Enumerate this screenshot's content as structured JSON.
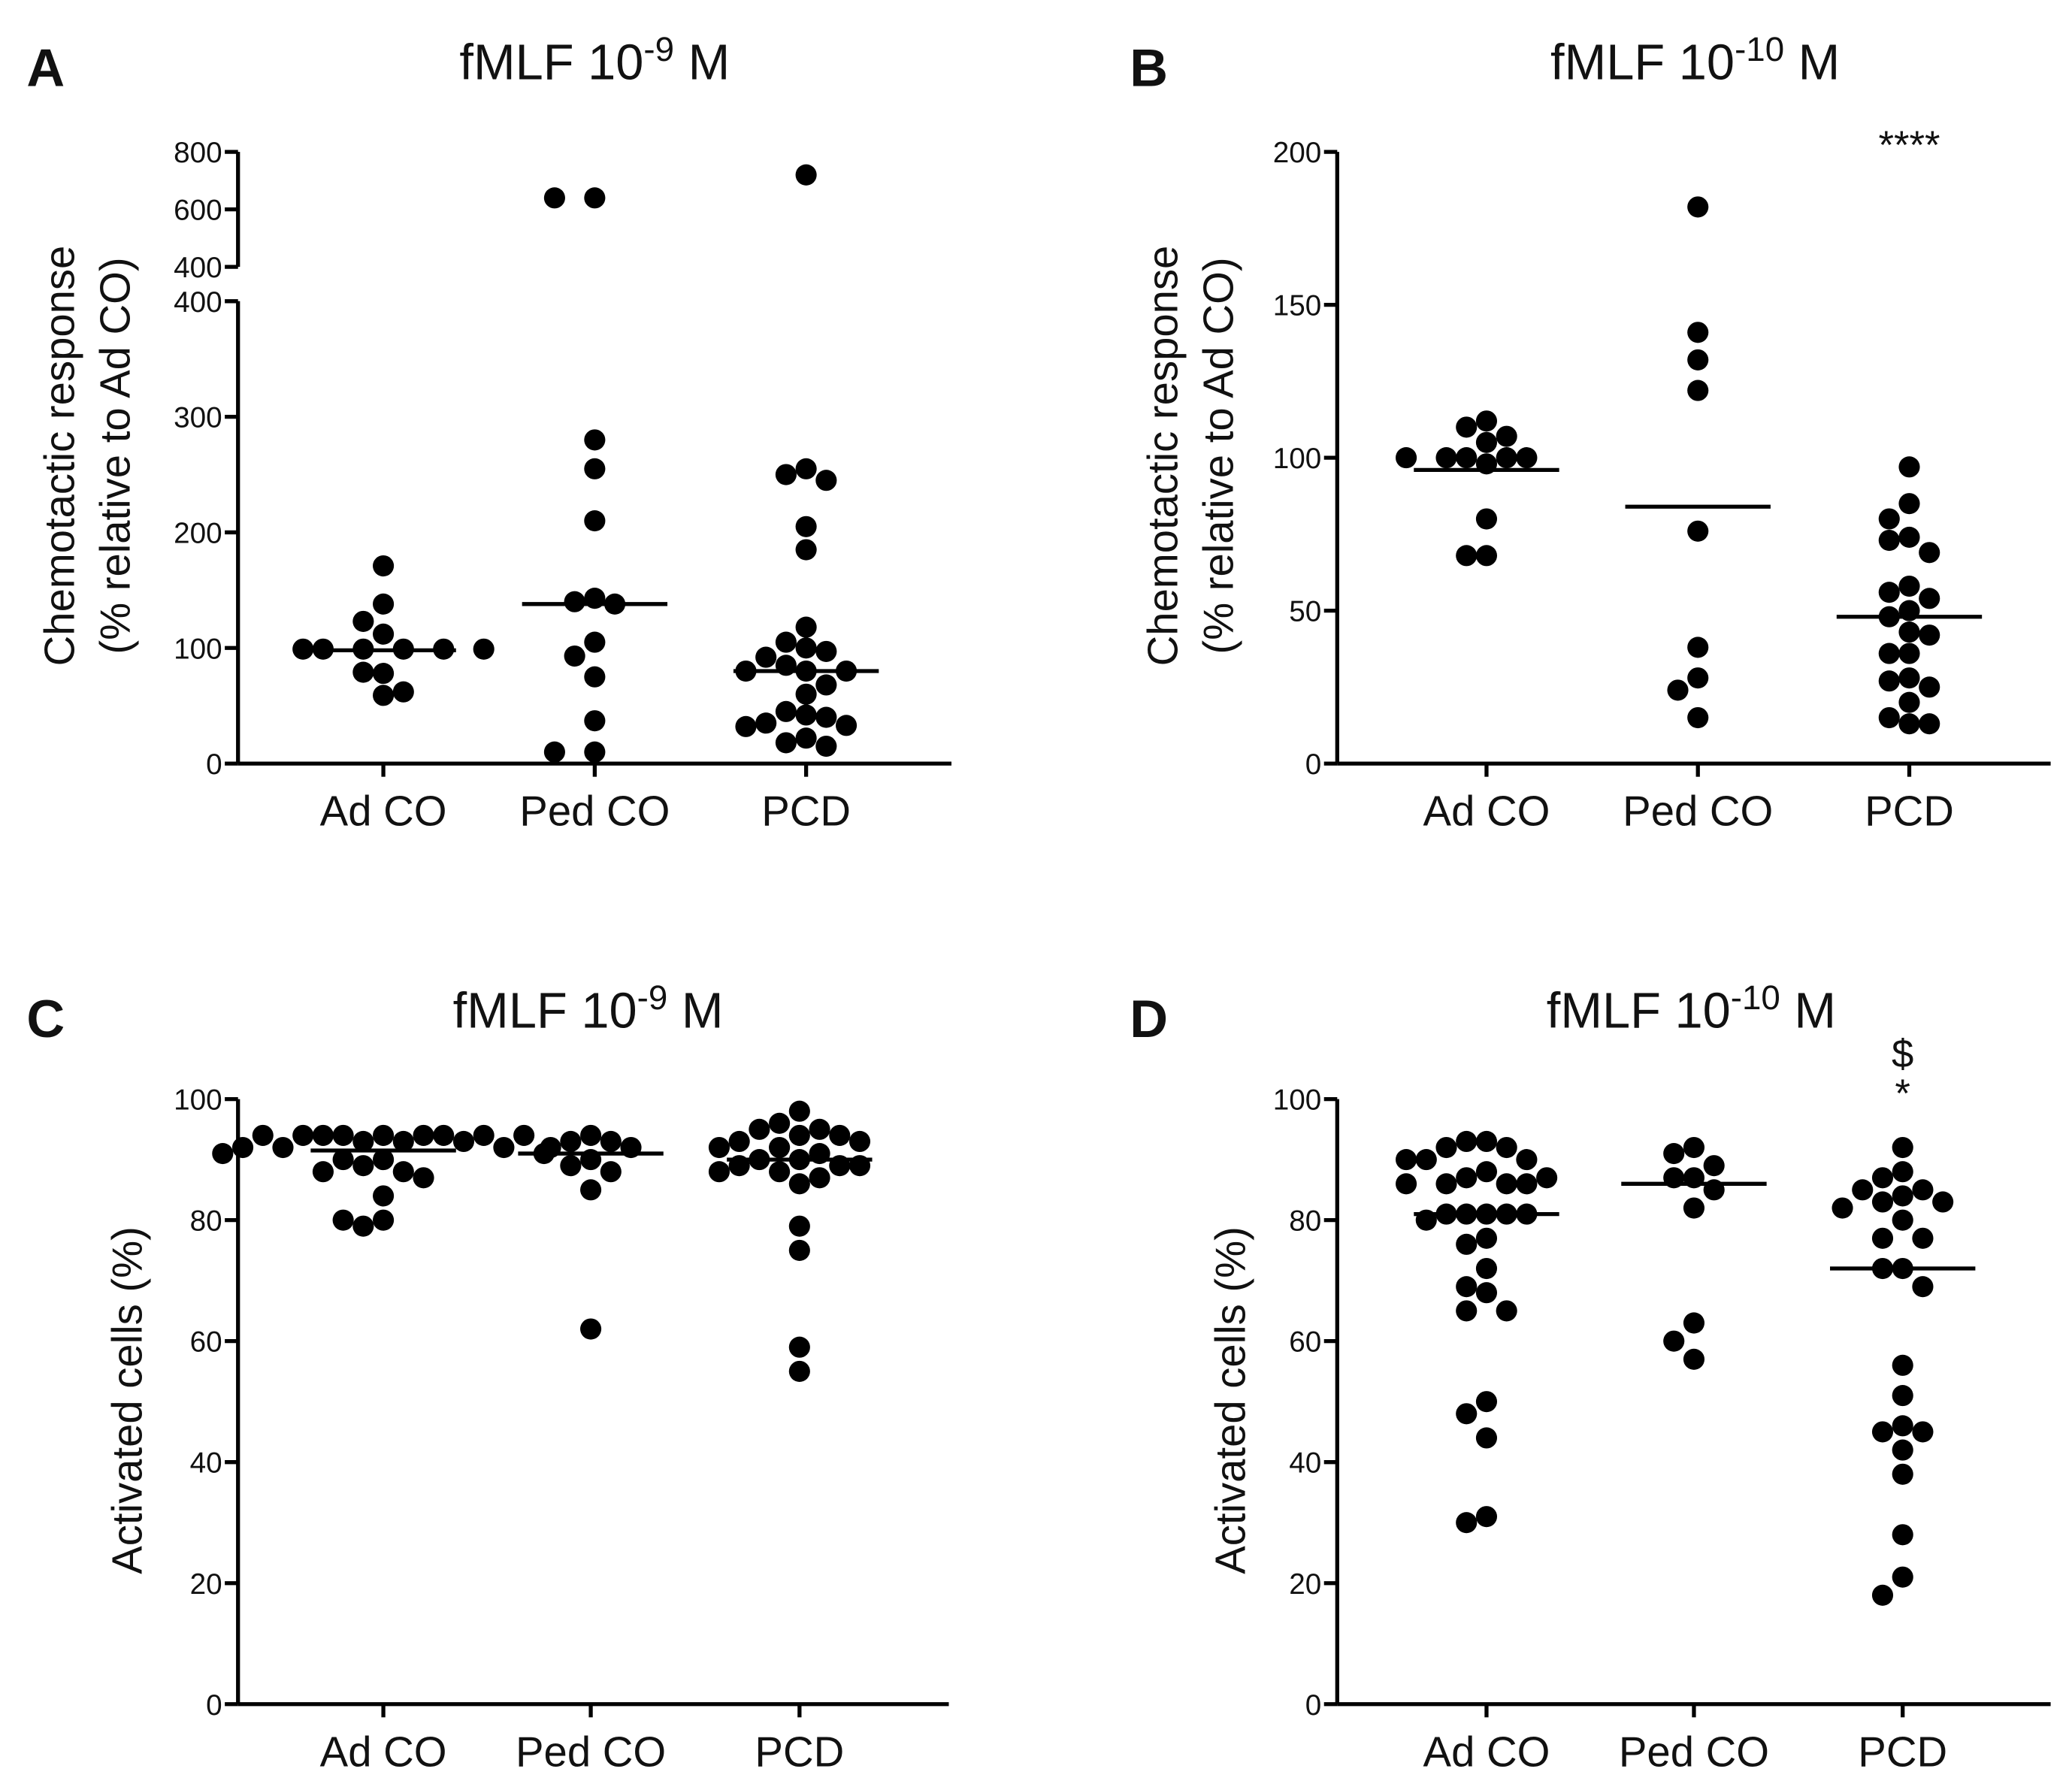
{
  "chart_data": [
    {
      "panel": "A",
      "type": "scatter",
      "title": {
        "prefix": "fMLF 10",
        "exponent": "-9",
        "suffix": " M"
      },
      "ylabel": [
        "Chemotactic response",
        "(% relative to Ad CO)"
      ],
      "categories": [
        "Ad CO",
        "Ped CO",
        "PCD"
      ],
      "ylim": [
        0,
        800
      ],
      "axis_break": [
        400,
        400
      ],
      "yticks_lower": [
        0,
        100,
        200,
        300,
        400
      ],
      "yticks_upper": [
        400,
        600,
        800
      ],
      "series": [
        {
          "name": "Ad CO",
          "median": 98,
          "values": [
            171,
            138,
            123,
            112,
            99,
            99,
            99,
            99,
            99,
            99,
            78,
            79,
            59,
            62
          ]
        },
        {
          "name": "Ped CO",
          "median": 138,
          "values": [
            640,
            640,
            280,
            255,
            210,
            143,
            140,
            138,
            105,
            93,
            75,
            37,
            10,
            10
          ]
        },
        {
          "name": "PCD",
          "median": 80,
          "values": [
            720,
            255,
            250,
            245,
            205,
            185,
            118,
            105,
            100,
            97,
            92,
            85,
            80,
            80,
            80,
            68,
            60,
            45,
            42,
            40,
            35,
            33,
            32,
            22,
            18,
            15
          ]
        }
      ],
      "annotations": []
    },
    {
      "panel": "B",
      "type": "scatter",
      "title": {
        "prefix": "fMLF 10",
        "exponent": "-10",
        "suffix": " M"
      },
      "ylabel": [
        "Chemotactic response",
        "(% relative to Ad CO)"
      ],
      "categories": [
        "Ad CO",
        "Ped CO",
        "PCD"
      ],
      "ylim": [
        0,
        200
      ],
      "yticks": [
        0,
        50,
        100,
        150,
        200
      ],
      "series": [
        {
          "name": "Ad CO",
          "median": 96,
          "values": [
            112,
            110,
            107,
            105,
            100,
            100,
            98,
            100,
            100,
            100,
            80,
            68,
            68
          ]
        },
        {
          "name": "Ped CO",
          "median": 84,
          "values": [
            182,
            141,
            132,
            122,
            76,
            38,
            28,
            24,
            15
          ]
        },
        {
          "name": "PCD",
          "median": 48,
          "values": [
            97,
            85,
            80,
            74,
            73,
            69,
            58,
            56,
            54,
            50,
            48,
            43,
            42,
            36,
            36,
            28,
            27,
            25,
            20,
            15,
            13,
            13
          ]
        }
      ],
      "annotations": [
        {
          "category": "PCD",
          "text": "****"
        }
      ]
    },
    {
      "panel": "C",
      "type": "scatter",
      "title": {
        "prefix": "fMLF 10",
        "exponent": "-9",
        "suffix": " M"
      },
      "ylabel": [
        "Activated cells (%)"
      ],
      "categories": [
        "Ad CO",
        "Ped CO",
        "PCD"
      ],
      "ylim": [
        0,
        100
      ],
      "yticks": [
        0,
        20,
        40,
        60,
        80,
        100
      ],
      "series": [
        {
          "name": "Ad CO",
          "median": 91.5,
          "values": [
            94,
            94,
            94,
            94,
            94,
            94,
            94,
            94,
            94,
            93,
            93,
            93,
            92,
            92,
            92,
            91,
            91,
            90,
            90,
            89,
            88,
            88,
            87,
            84,
            80,
            79,
            80
          ]
        },
        {
          "name": "Ped CO",
          "median": 91,
          "values": [
            94,
            93,
            93,
            92,
            92,
            90,
            89,
            88,
            85,
            62
          ]
        },
        {
          "name": "PCD",
          "median": 90,
          "values": [
            98,
            96,
            95,
            95,
            94,
            94,
            93,
            93,
            92,
            92,
            91,
            90,
            90,
            89,
            89,
            89,
            88,
            88,
            87,
            86,
            79,
            75,
            59,
            55
          ]
        }
      ],
      "annotations": []
    },
    {
      "panel": "D",
      "type": "scatter",
      "title": {
        "prefix": "fMLF 10",
        "exponent": "-10",
        "suffix": " M"
      },
      "ylabel": [
        "Activated cells (%)"
      ],
      "categories": [
        "Ad CO",
        "Ped CO",
        "PCD"
      ],
      "ylim": [
        0,
        100
      ],
      "yticks": [
        0,
        20,
        40,
        60,
        80,
        100
      ],
      "series": [
        {
          "name": "Ad CO",
          "median": 81,
          "values": [
            93,
            93,
            92,
            92,
            90,
            90,
            90,
            88,
            87,
            86,
            86,
            86,
            86,
            87,
            81,
            81,
            81,
            81,
            81,
            80,
            77,
            76,
            72,
            69,
            68,
            65,
            65,
            50,
            48,
            44,
            31,
            30
          ]
        },
        {
          "name": "Ped CO",
          "median": 86,
          "values": [
            92,
            91,
            89,
            87,
            87,
            85,
            82,
            63,
            60,
            57
          ]
        },
        {
          "name": "PCD",
          "median": 72,
          "values": [
            92,
            88,
            87,
            85,
            85,
            84,
            83,
            83,
            82,
            80,
            77,
            77,
            72,
            72,
            69,
            56,
            51,
            46,
            45,
            45,
            42,
            38,
            28,
            21,
            18
          ]
        }
      ],
      "annotations": [
        {
          "category": "PCD",
          "text": "$"
        },
        {
          "category": "PCD",
          "text": "*"
        }
      ]
    }
  ],
  "colors": {
    "marker": "#000000",
    "axis": "#000000"
  }
}
